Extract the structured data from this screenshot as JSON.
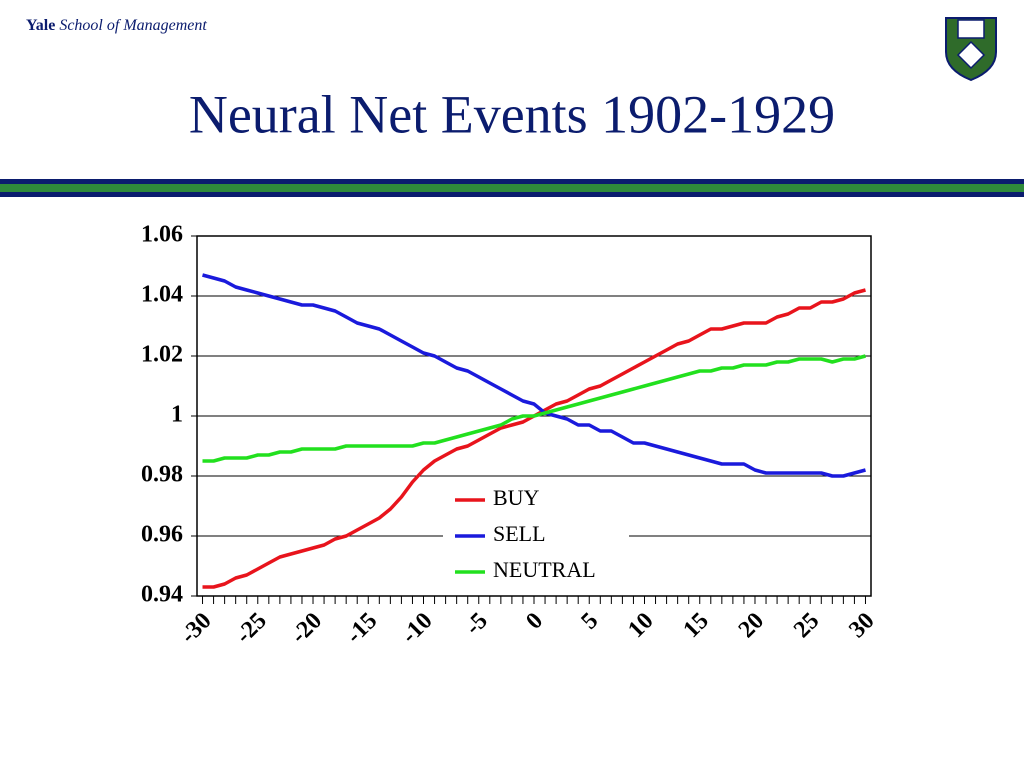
{
  "header": {
    "brand": "Yale",
    "school": "School of Management"
  },
  "chart_data": {
    "type": "line",
    "title": "Neural Net Events 1902-1929",
    "categories": [
      "-30",
      null,
      null,
      null,
      null,
      "-25",
      null,
      null,
      null,
      null,
      "-20",
      null,
      null,
      null,
      null,
      "-15",
      null,
      null,
      null,
      null,
      "-10",
      null,
      null,
      null,
      null,
      "-5",
      null,
      null,
      null,
      null,
      "0",
      null,
      null,
      null,
      null,
      "5",
      null,
      null,
      null,
      null,
      "10",
      null,
      null,
      null,
      null,
      "15",
      null,
      null,
      null,
      null,
      "20",
      null,
      null,
      null,
      null,
      "25",
      null,
      null,
      null,
      null,
      "30"
    ],
    "series": [
      {
        "name": "BUY",
        "color": "#e8141c",
        "values": [
          0.943,
          0.943,
          0.944,
          0.946,
          0.947,
          0.949,
          0.951,
          0.953,
          0.954,
          0.955,
          0.956,
          0.957,
          0.959,
          0.96,
          0.962,
          0.964,
          0.966,
          0.969,
          0.973,
          0.978,
          0.982,
          0.985,
          0.987,
          0.989,
          0.99,
          0.992,
          0.994,
          0.996,
          0.997,
          0.998,
          1.0,
          1.002,
          1.004,
          1.005,
          1.007,
          1.009,
          1.01,
          1.012,
          1.014,
          1.016,
          1.018,
          1.02,
          1.022,
          1.024,
          1.025,
          1.027,
          1.029,
          1.029,
          1.03,
          1.031,
          1.031,
          1.031,
          1.033,
          1.034,
          1.036,
          1.036,
          1.038,
          1.038,
          1.039,
          1.041,
          1.042
        ]
      },
      {
        "name": "SELL",
        "color": "#1a1adc",
        "values": [
          1.047,
          1.046,
          1.045,
          1.043,
          1.042,
          1.041,
          1.04,
          1.039,
          1.038,
          1.037,
          1.037,
          1.036,
          1.035,
          1.033,
          1.031,
          1.03,
          1.029,
          1.027,
          1.025,
          1.023,
          1.021,
          1.02,
          1.018,
          1.016,
          1.015,
          1.013,
          1.011,
          1.009,
          1.007,
          1.005,
          1.004,
          1.001,
          1.0,
          0.999,
          0.997,
          0.997,
          0.995,
          0.995,
          0.993,
          0.991,
          0.991,
          0.99,
          0.989,
          0.988,
          0.987,
          0.986,
          0.985,
          0.984,
          0.984,
          0.984,
          0.982,
          0.981,
          0.981,
          0.981,
          0.981,
          0.981,
          0.981,
          0.98,
          0.98,
          0.981,
          0.982
        ]
      },
      {
        "name": "NEUTRAL",
        "color": "#22e01e",
        "values": [
          0.985,
          0.985,
          0.986,
          0.986,
          0.986,
          0.987,
          0.987,
          0.988,
          0.988,
          0.989,
          0.989,
          0.989,
          0.989,
          0.99,
          0.99,
          0.99,
          0.99,
          0.99,
          0.99,
          0.99,
          0.991,
          0.991,
          0.992,
          0.993,
          0.994,
          0.995,
          0.996,
          0.997,
          0.999,
          1.0,
          1.0,
          1.001,
          1.002,
          1.003,
          1.004,
          1.005,
          1.006,
          1.007,
          1.008,
          1.009,
          1.01,
          1.011,
          1.012,
          1.013,
          1.014,
          1.015,
          1.015,
          1.016,
          1.016,
          1.017,
          1.017,
          1.017,
          1.018,
          1.018,
          1.019,
          1.019,
          1.019,
          1.018,
          1.019,
          1.019,
          1.02
        ]
      }
    ],
    "ylim": [
      0.94,
      1.06
    ],
    "yticks": [
      0.94,
      0.96,
      0.98,
      1,
      1.02,
      1.04,
      1.06
    ],
    "grid": true,
    "legend": "lower center"
  }
}
